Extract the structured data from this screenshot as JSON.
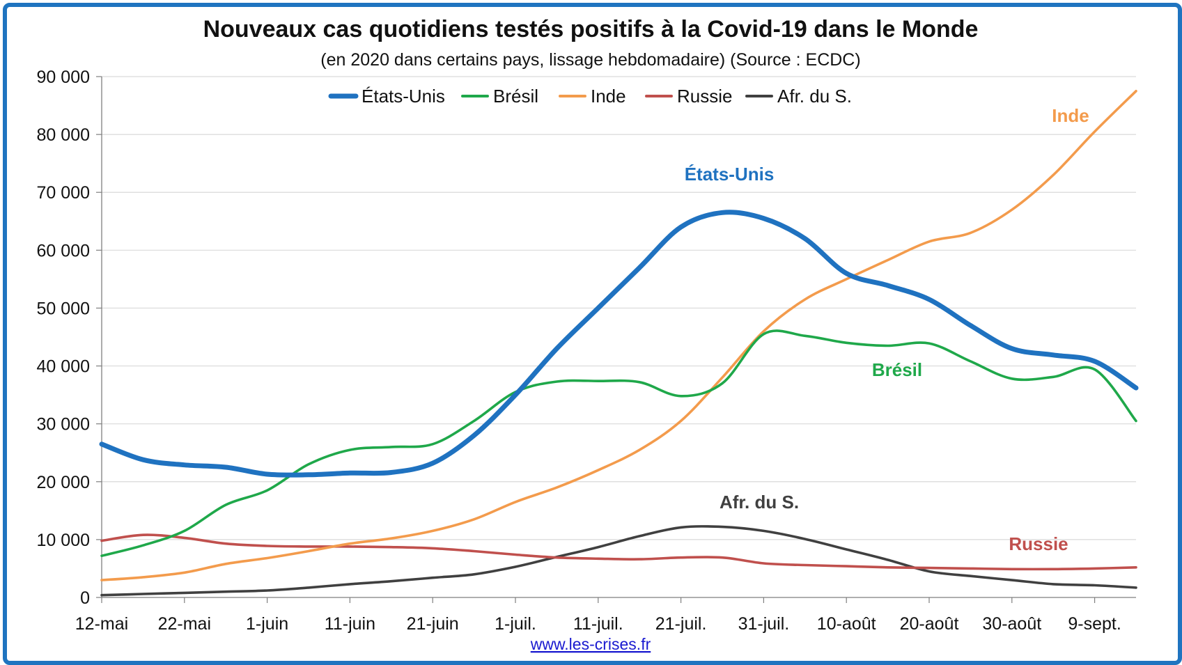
{
  "chart_data": {
    "type": "line",
    "title": "Nouveaux cas quotidiens testés positifs à la Covid-19 dans le Monde",
    "subtitle": "(en 2020 dans certains pays, lissage hebdomadaire) (Source : ECDC)",
    "xlabel": "",
    "ylabel": "",
    "ylim": [
      0,
      90000
    ],
    "yticks": [
      {
        "value": 0,
        "label": "0"
      },
      {
        "value": 10000,
        "label": "10 000"
      },
      {
        "value": 20000,
        "label": "20 000"
      },
      {
        "value": 30000,
        "label": "30 000"
      },
      {
        "value": 40000,
        "label": "40 000"
      },
      {
        "value": 50000,
        "label": "50 000"
      },
      {
        "value": 60000,
        "label": "60 000"
      },
      {
        "value": 70000,
        "label": "70 000"
      },
      {
        "value": 80000,
        "label": "80 000"
      },
      {
        "value": 90000,
        "label": "90 000"
      }
    ],
    "xlim": [
      "2020-05-12",
      "2020-09-14"
    ],
    "xticks": [
      {
        "date": "2020-05-12",
        "label": "12-mai"
      },
      {
        "date": "2020-05-22",
        "label": "22-mai"
      },
      {
        "date": "2020-06-01",
        "label": "1-juin"
      },
      {
        "date": "2020-06-11",
        "label": "11-juin"
      },
      {
        "date": "2020-06-21",
        "label": "21-juin"
      },
      {
        "date": "2020-07-01",
        "label": "1-juil."
      },
      {
        "date": "2020-07-11",
        "label": "11-juil."
      },
      {
        "date": "2020-07-21",
        "label": "21-juil."
      },
      {
        "date": "2020-07-31",
        "label": "31-juil."
      },
      {
        "date": "2020-08-10",
        "label": "10-août"
      },
      {
        "date": "2020-08-20",
        "label": "20-août"
      },
      {
        "date": "2020-08-30",
        "label": "30-août"
      },
      {
        "date": "2020-09-09",
        "label": "9-sept."
      }
    ],
    "grid": "horizontal",
    "legend_position": "top",
    "series": [
      {
        "name": "États-Unis",
        "color": "#1f72c0",
        "annotation": "États-Unis",
        "x": [
          "2020-05-12",
          "2020-05-17",
          "2020-05-22",
          "2020-05-27",
          "2020-06-01",
          "2020-06-06",
          "2020-06-11",
          "2020-06-16",
          "2020-06-21",
          "2020-06-26",
          "2020-07-01",
          "2020-07-06",
          "2020-07-11",
          "2020-07-16",
          "2020-07-21",
          "2020-07-26",
          "2020-07-31",
          "2020-08-05",
          "2020-08-10",
          "2020-08-15",
          "2020-08-20",
          "2020-08-25",
          "2020-08-30",
          "2020-09-04",
          "2020-09-09",
          "2020-09-14"
        ],
        "y": [
          26500,
          23800,
          22900,
          22500,
          21300,
          21200,
          21500,
          21600,
          23200,
          28000,
          35000,
          43000,
          50000,
          57000,
          64000,
          66500,
          65500,
          62000,
          56000,
          53900,
          51500,
          47000,
          43000,
          41900,
          40800,
          36200
        ]
      },
      {
        "name": "Brésil",
        "color": "#1fa84a",
        "annotation": "Brésil",
        "x": [
          "2020-05-12",
          "2020-05-17",
          "2020-05-22",
          "2020-05-27",
          "2020-06-01",
          "2020-06-06",
          "2020-06-11",
          "2020-06-16",
          "2020-06-21",
          "2020-06-26",
          "2020-07-01",
          "2020-07-06",
          "2020-07-11",
          "2020-07-16",
          "2020-07-21",
          "2020-07-26",
          "2020-07-31",
          "2020-08-05",
          "2020-08-10",
          "2020-08-15",
          "2020-08-20",
          "2020-08-25",
          "2020-08-30",
          "2020-09-04",
          "2020-09-09",
          "2020-09-14"
        ],
        "y": [
          7200,
          9000,
          11500,
          16000,
          18500,
          23000,
          25500,
          26000,
          26500,
          30500,
          35500,
          37300,
          37400,
          37200,
          34800,
          37000,
          45500,
          45200,
          44000,
          43500,
          43900,
          40800,
          37800,
          38100,
          39400,
          30500
        ]
      },
      {
        "name": "Inde",
        "color": "#f39b4c",
        "annotation": "Inde",
        "x": [
          "2020-05-12",
          "2020-05-17",
          "2020-05-22",
          "2020-05-27",
          "2020-06-01",
          "2020-06-06",
          "2020-06-11",
          "2020-06-16",
          "2020-06-21",
          "2020-06-26",
          "2020-07-01",
          "2020-07-06",
          "2020-07-11",
          "2020-07-16",
          "2020-07-21",
          "2020-07-26",
          "2020-07-31",
          "2020-08-05",
          "2020-08-10",
          "2020-08-15",
          "2020-08-20",
          "2020-08-25",
          "2020-08-30",
          "2020-09-04",
          "2020-09-09",
          "2020-09-14"
        ],
        "y": [
          3000,
          3500,
          4300,
          5800,
          6800,
          8000,
          9300,
          10200,
          11500,
          13500,
          16500,
          19000,
          22000,
          25500,
          30500,
          38000,
          46000,
          51500,
          55000,
          58300,
          61500,
          63000,
          67000,
          73000,
          80500,
          87500
        ]
      },
      {
        "name": "Russie",
        "color": "#c0504d",
        "annotation": "Russie",
        "x": [
          "2020-05-12",
          "2020-05-17",
          "2020-05-22",
          "2020-05-27",
          "2020-06-01",
          "2020-06-06",
          "2020-06-11",
          "2020-06-16",
          "2020-06-21",
          "2020-06-26",
          "2020-07-01",
          "2020-07-06",
          "2020-07-11",
          "2020-07-16",
          "2020-07-21",
          "2020-07-26",
          "2020-07-31",
          "2020-08-05",
          "2020-08-10",
          "2020-08-15",
          "2020-08-20",
          "2020-08-25",
          "2020-08-30",
          "2020-09-04",
          "2020-09-09",
          "2020-09-14"
        ],
        "y": [
          9800,
          10800,
          10300,
          9300,
          8900,
          8800,
          8800,
          8700,
          8500,
          8000,
          7400,
          6900,
          6700,
          6600,
          6900,
          6900,
          5900,
          5600,
          5400,
          5200,
          5100,
          5000,
          4900,
          4900,
          5000,
          5200
        ]
      },
      {
        "name": "Afr. du S.",
        "color": "#404040",
        "annotation": "Afr. du S.",
        "x": [
          "2020-05-12",
          "2020-05-17",
          "2020-05-22",
          "2020-05-27",
          "2020-06-01",
          "2020-06-06",
          "2020-06-11",
          "2020-06-16",
          "2020-06-21",
          "2020-06-26",
          "2020-07-01",
          "2020-07-06",
          "2020-07-11",
          "2020-07-16",
          "2020-07-21",
          "2020-07-26",
          "2020-07-31",
          "2020-08-05",
          "2020-08-10",
          "2020-08-15",
          "2020-08-20",
          "2020-08-25",
          "2020-08-30",
          "2020-09-04",
          "2020-09-09",
          "2020-09-14"
        ],
        "y": [
          400,
          600,
          800,
          1000,
          1200,
          1700,
          2300,
          2800,
          3400,
          4000,
          5300,
          7000,
          8700,
          10600,
          12100,
          12200,
          11500,
          10100,
          8300,
          6500,
          4500,
          3700,
          3000,
          2300,
          2100,
          1700
        ]
      }
    ]
  },
  "footer": {
    "source_link": "www.les-crises.fr"
  }
}
